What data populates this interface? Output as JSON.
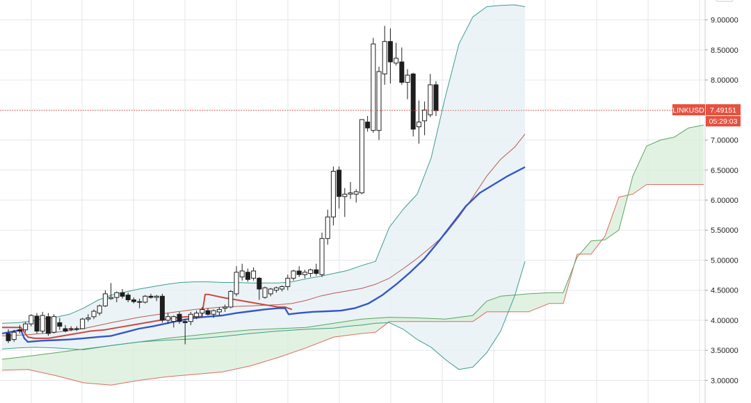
{
  "chart_data": {
    "type": "candlestick",
    "symbol": "LINKUSD",
    "last_price": "7.49151",
    "countdown": "05:29:03",
    "ylim": [
      2.9,
      9.3
    ],
    "y_ticks": [
      "3.00000",
      "3.50000",
      "4.00000",
      "4.50000",
      "5.00000",
      "5.50000",
      "6.00000",
      "6.50000",
      "7.00000",
      "7.50000",
      "8.00000",
      "8.50000",
      "9.00000"
    ],
    "candles": [
      {
        "o": 3.78,
        "h": 3.85,
        "l": 3.62,
        "c": 3.66
      },
      {
        "o": 3.68,
        "h": 3.84,
        "l": 3.64,
        "c": 3.8
      },
      {
        "o": 3.84,
        "h": 3.92,
        "l": 3.78,
        "c": 3.82
      },
      {
        "o": 3.84,
        "h": 3.97,
        "l": 3.8,
        "c": 3.94
      },
      {
        "o": 3.94,
        "h": 4.1,
        "l": 3.9,
        "c": 4.08
      },
      {
        "o": 4.07,
        "h": 4.12,
        "l": 3.78,
        "c": 3.82
      },
      {
        "o": 3.82,
        "h": 4.14,
        "l": 3.78,
        "c": 4.08
      },
      {
        "o": 4.06,
        "h": 4.12,
        "l": 3.74,
        "c": 3.78
      },
      {
        "o": 3.8,
        "h": 4.1,
        "l": 3.78,
        "c": 4.06
      },
      {
        "o": 3.96,
        "h": 4.04,
        "l": 3.84,
        "c": 3.9
      },
      {
        "o": 3.86,
        "h": 3.92,
        "l": 3.8,
        "c": 3.82
      },
      {
        "o": 3.86,
        "h": 3.9,
        "l": 3.82,
        "c": 3.85
      },
      {
        "o": 3.86,
        "h": 3.9,
        "l": 3.82,
        "c": 3.86
      },
      {
        "o": 3.86,
        "h": 4.04,
        "l": 3.86,
        "c": 4.02
      },
      {
        "o": 4.02,
        "h": 4.1,
        "l": 3.98,
        "c": 4.04
      },
      {
        "o": 4.06,
        "h": 4.18,
        "l": 4.02,
        "c": 4.15
      },
      {
        "o": 4.12,
        "h": 4.26,
        "l": 4.08,
        "c": 4.24
      },
      {
        "o": 4.24,
        "h": 4.5,
        "l": 4.22,
        "c": 4.44
      },
      {
        "o": 4.36,
        "h": 4.62,
        "l": 4.34,
        "c": 4.38
      },
      {
        "o": 4.38,
        "h": 4.48,
        "l": 4.3,
        "c": 4.46
      },
      {
        "o": 4.46,
        "h": 4.52,
        "l": 4.36,
        "c": 4.4
      },
      {
        "o": 4.42,
        "h": 4.46,
        "l": 4.3,
        "c": 4.34
      },
      {
        "o": 4.34,
        "h": 4.38,
        "l": 4.28,
        "c": 4.31
      },
      {
        "o": 4.31,
        "h": 4.36,
        "l": 4.2,
        "c": 4.31
      },
      {
        "o": 4.3,
        "h": 4.42,
        "l": 4.28,
        "c": 4.4
      },
      {
        "o": 4.4,
        "h": 4.44,
        "l": 4.36,
        "c": 4.38
      },
      {
        "o": 4.38,
        "h": 4.42,
        "l": 4.32,
        "c": 4.4
      },
      {
        "o": 4.4,
        "h": 4.44,
        "l": 3.96,
        "c": 4.0
      },
      {
        "o": 4.0,
        "h": 4.12,
        "l": 3.94,
        "c": 4.06
      },
      {
        "o": 3.98,
        "h": 4.08,
        "l": 3.88,
        "c": 4.06
      },
      {
        "o": 4.1,
        "h": 4.14,
        "l": 3.94,
        "c": 3.98
      },
      {
        "o": 3.98,
        "h": 4.02,
        "l": 3.6,
        "c": 3.96
      },
      {
        "o": 3.98,
        "h": 4.14,
        "l": 3.92,
        "c": 4.1
      },
      {
        "o": 4.06,
        "h": 4.16,
        "l": 4.02,
        "c": 4.12
      },
      {
        "o": 4.12,
        "h": 4.22,
        "l": 4.06,
        "c": 4.18
      },
      {
        "o": 4.16,
        "h": 4.2,
        "l": 4.08,
        "c": 4.1
      },
      {
        "o": 4.1,
        "h": 4.18,
        "l": 4.04,
        "c": 4.16
      },
      {
        "o": 4.14,
        "h": 4.22,
        "l": 4.08,
        "c": 4.18
      },
      {
        "o": 4.2,
        "h": 4.26,
        "l": 4.14,
        "c": 4.22
      },
      {
        "o": 4.22,
        "h": 4.5,
        "l": 4.2,
        "c": 4.48
      },
      {
        "o": 4.44,
        "h": 4.9,
        "l": 4.4,
        "c": 4.8
      },
      {
        "o": 4.72,
        "h": 4.94,
        "l": 4.66,
        "c": 4.82
      },
      {
        "o": 4.8,
        "h": 4.86,
        "l": 4.64,
        "c": 4.68
      },
      {
        "o": 4.7,
        "h": 4.88,
        "l": 4.66,
        "c": 4.82
      },
      {
        "o": 4.7,
        "h": 4.72,
        "l": 4.34,
        "c": 4.52
      },
      {
        "o": 4.38,
        "h": 4.56,
        "l": 4.36,
        "c": 4.54
      },
      {
        "o": 4.44,
        "h": 4.54,
        "l": 4.4,
        "c": 4.52
      },
      {
        "o": 4.5,
        "h": 4.56,
        "l": 4.46,
        "c": 4.54
      },
      {
        "o": 4.52,
        "h": 4.58,
        "l": 4.48,
        "c": 4.56
      },
      {
        "o": 4.56,
        "h": 4.76,
        "l": 4.5,
        "c": 4.7
      },
      {
        "o": 4.7,
        "h": 4.84,
        "l": 4.66,
        "c": 4.82
      },
      {
        "o": 4.82,
        "h": 4.9,
        "l": 4.72,
        "c": 4.76
      },
      {
        "o": 4.76,
        "h": 4.84,
        "l": 4.7,
        "c": 4.8
      },
      {
        "o": 4.78,
        "h": 4.86,
        "l": 4.72,
        "c": 4.84
      },
      {
        "o": 4.84,
        "h": 4.94,
        "l": 4.74,
        "c": 4.78
      },
      {
        "o": 4.76,
        "h": 5.46,
        "l": 4.72,
        "c": 5.36
      },
      {
        "o": 5.36,
        "h": 5.84,
        "l": 5.26,
        "c": 5.72
      },
      {
        "o": 5.72,
        "h": 6.56,
        "l": 5.58,
        "c": 6.48
      },
      {
        "o": 6.5,
        "h": 6.56,
        "l": 5.86,
        "c": 6.06
      },
      {
        "o": 6.06,
        "h": 6.2,
        "l": 5.72,
        "c": 6.1
      },
      {
        "o": 6.1,
        "h": 6.3,
        "l": 6.02,
        "c": 6.12
      },
      {
        "o": 6.1,
        "h": 6.18,
        "l": 5.96,
        "c": 6.14
      },
      {
        "o": 6.12,
        "h": 7.34,
        "l": 6.1,
        "c": 7.34
      },
      {
        "o": 7.3,
        "h": 7.4,
        "l": 7.14,
        "c": 7.2
      },
      {
        "o": 7.16,
        "h": 8.7,
        "l": 7.12,
        "c": 8.6
      },
      {
        "o": 7.16,
        "h": 8.22,
        "l": 7.0,
        "c": 8.14
      },
      {
        "o": 8.1,
        "h": 8.9,
        "l": 7.92,
        "c": 8.64
      },
      {
        "o": 8.64,
        "h": 8.86,
        "l": 7.94,
        "c": 8.3
      },
      {
        "o": 8.28,
        "h": 8.62,
        "l": 8.24,
        "c": 8.36
      },
      {
        "o": 8.3,
        "h": 8.54,
        "l": 7.92,
        "c": 7.96
      },
      {
        "o": 7.96,
        "h": 8.18,
        "l": 7.68,
        "c": 8.08
      },
      {
        "o": 8.1,
        "h": 8.12,
        "l": 7.06,
        "c": 7.18
      },
      {
        "o": 7.22,
        "h": 7.66,
        "l": 6.94,
        "c": 7.3
      },
      {
        "o": 7.32,
        "h": 7.64,
        "l": 7.08,
        "c": 7.5
      },
      {
        "o": 7.42,
        "h": 8.1,
        "l": 7.38,
        "c": 7.92
      },
      {
        "o": 7.92,
        "h": 7.98,
        "l": 7.4,
        "c": 7.49
      }
    ],
    "bb_upper_x": [
      3,
      25,
      40,
      60,
      80,
      100,
      120,
      140,
      160,
      180,
      200,
      220,
      240,
      260,
      280,
      300,
      320,
      340,
      360,
      380,
      400,
      420,
      440,
      460,
      480,
      500,
      520,
      540,
      560,
      580,
      600,
      620,
      640,
      660,
      680,
      700,
      720,
      740,
      755
    ],
    "bb_upper_y": [
      3.95,
      3.96,
      3.98,
      4.02,
      4.05,
      4.1,
      4.2,
      4.33,
      4.42,
      4.47,
      4.52,
      4.56,
      4.6,
      4.63,
      4.64,
      4.64,
      4.63,
      4.63,
      4.62,
      4.62,
      4.62,
      4.64,
      4.69,
      4.73,
      4.78,
      4.83,
      4.91,
      4.98,
      5.55,
      5.85,
      6.1,
      6.7,
      7.7,
      8.6,
      9.05,
      9.22,
      9.24,
      9.25,
      9.22
    ],
    "bb_basis_x": [
      3,
      40,
      80,
      120,
      160,
      200,
      240,
      280,
      300,
      320,
      360,
      400,
      420,
      440,
      460,
      480,
      500,
      520,
      540,
      560,
      580,
      600,
      620,
      640,
      660,
      680,
      700,
      720,
      740,
      755
    ],
    "bb_basis_y": [
      3.74,
      3.76,
      3.8,
      3.86,
      3.96,
      4.05,
      4.12,
      4.18,
      4.2,
      4.22,
      4.24,
      4.26,
      4.28,
      4.33,
      4.4,
      4.45,
      4.49,
      4.53,
      4.6,
      4.7,
      4.86,
      5.03,
      5.22,
      5.43,
      5.72,
      6.05,
      6.4,
      6.68,
      6.88,
      7.1
    ],
    "bb_lower_x": [
      3,
      25,
      50,
      80,
      120,
      160,
      200,
      240,
      280,
      320,
      360,
      400,
      440,
      480,
      500,
      520,
      540,
      560,
      580,
      600,
      620,
      640,
      660,
      680,
      700,
      720,
      740,
      755
    ],
    "bb_lower_y": [
      3.52,
      3.54,
      3.55,
      3.54,
      3.51,
      3.58,
      3.64,
      3.67,
      3.69,
      3.73,
      3.78,
      3.82,
      3.85,
      3.87,
      3.9,
      3.92,
      3.95,
      3.96,
      3.85,
      3.68,
      3.55,
      3.35,
      3.18,
      3.22,
      3.46,
      3.82,
      4.4,
      4.98
    ],
    "kijun_x": [
      3,
      30,
      35,
      40,
      60,
      80,
      100,
      120,
      140,
      160,
      180,
      200,
      220,
      240,
      260,
      280,
      290,
      300,
      320,
      340,
      360,
      380,
      400,
      410,
      415,
      430,
      450,
      470,
      490,
      510,
      530,
      550,
      570,
      590,
      610,
      630,
      650,
      670,
      690,
      710,
      730,
      755
    ],
    "kijun_y": [
      3.78,
      3.84,
      3.7,
      3.64,
      3.66,
      3.67,
      3.68,
      3.7,
      3.72,
      3.74,
      3.8,
      3.86,
      3.9,
      3.95,
      4.0,
      4.04,
      4.05,
      4.06,
      4.08,
      4.12,
      4.15,
      4.18,
      4.2,
      4.2,
      4.1,
      4.12,
      4.14,
      4.15,
      4.16,
      4.2,
      4.28,
      4.42,
      4.6,
      4.8,
      5.02,
      5.3,
      5.6,
      5.9,
      6.12,
      6.26,
      6.4,
      6.55
    ],
    "tenkan_x": [
      3,
      30,
      40,
      50,
      70,
      90,
      110,
      130,
      150,
      170,
      190,
      210,
      230,
      250,
      270,
      290,
      295,
      300,
      320,
      340,
      360,
      380,
      400,
      410,
      420
    ],
    "tenkan_y": [
      3.88,
      3.88,
      3.72,
      3.7,
      3.7,
      3.74,
      3.78,
      3.82,
      3.84,
      3.88,
      3.92,
      3.96,
      4.0,
      4.04,
      4.06,
      4.06,
      4.43,
      4.43,
      4.38,
      4.34,
      4.3,
      4.26,
      4.22,
      4.22,
      4.18
    ],
    "span_a_x": [
      3,
      40,
      80,
      120,
      160,
      200,
      240,
      280,
      320,
      360,
      400,
      440,
      480,
      520,
      560,
      600,
      640,
      680,
      700,
      720,
      760,
      790,
      810,
      830,
      850,
      870,
      890,
      910,
      930,
      950,
      970,
      990,
      1012
    ],
    "span_a_y": [
      3.35,
      3.4,
      3.46,
      3.52,
      3.58,
      3.64,
      3.7,
      3.75,
      3.8,
      3.84,
      3.86,
      3.88,
      3.95,
      4.02,
      4.05,
      4.04,
      4.02,
      4.08,
      4.32,
      4.4,
      4.44,
      4.46,
      4.46,
      5.05,
      5.32,
      5.34,
      5.5,
      6.4,
      6.9,
      7.0,
      7.05,
      7.2,
      7.25
    ],
    "span_b_x": [
      3,
      40,
      80,
      120,
      160,
      200,
      240,
      280,
      320,
      360,
      400,
      440,
      480,
      520,
      540,
      560,
      600,
      640,
      680,
      700,
      760,
      790,
      810,
      830,
      850,
      870,
      890,
      910,
      930,
      950,
      970,
      990,
      1012
    ],
    "span_b_y": [
      3.17,
      3.18,
      3.08,
      2.96,
      2.92,
      3.0,
      3.06,
      3.1,
      3.14,
      3.24,
      3.38,
      3.54,
      3.72,
      3.78,
      3.8,
      3.98,
      3.98,
      3.98,
      3.98,
      4.14,
      4.14,
      4.28,
      4.28,
      5.1,
      5.1,
      5.4,
      6.05,
      6.1,
      6.26,
      6.26,
      6.26,
      6.26,
      6.26
    ]
  },
  "colors": {
    "bb_line": "#3f9a8e",
    "bb_fill": "#e7f1f6",
    "basis": "#b75a4e",
    "kijun": "#3455c8",
    "tenkan": "#c9493d",
    "span_a": "#59a35d",
    "span_b": "#e06a62",
    "cloud_fill": "#d6ecd6",
    "badge": "#e45241",
    "price_line": "#d9504b",
    "grid": "#e3e6ea",
    "candle_stroke": "#1e1e1e"
  }
}
